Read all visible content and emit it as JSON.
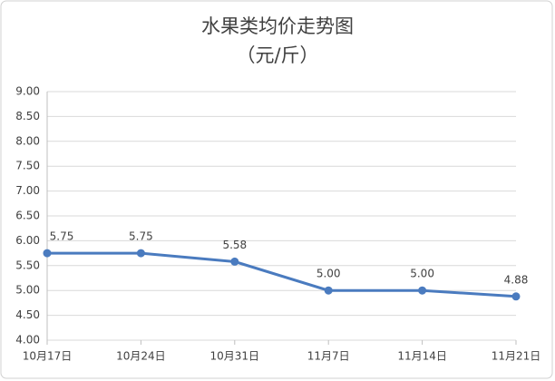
{
  "chart_data": {
    "type": "line",
    "title": "水果类均价走势图",
    "subtitle": "（元/斤）",
    "categories": [
      "10月17日",
      "10月24日",
      "10月31日",
      "11月7日",
      "11月14日",
      "11月21日"
    ],
    "series": [
      {
        "color": "#4a7bbf",
        "values": [
          5.75,
          5.75,
          5.58,
          5.0,
          5.0,
          4.88
        ],
        "value_labels": [
          "5.75",
          "5.75",
          "5.58",
          "5.00",
          "5.00",
          "4.88"
        ]
      }
    ],
    "ylim": [
      4,
      9
    ],
    "yticks": [
      {
        "value": 4,
        "label": "4.00"
      },
      {
        "value": 4.5,
        "label": "4.50"
      },
      {
        "value": 5,
        "label": "5.00"
      },
      {
        "value": 5.5,
        "label": "5.50"
      },
      {
        "value": 6,
        "label": "6.00"
      },
      {
        "value": 6.5,
        "label": "6.50"
      },
      {
        "value": 7,
        "label": "7.00"
      },
      {
        "value": 7.5,
        "label": "7.50"
      },
      {
        "value": 8,
        "label": "8.00"
      },
      {
        "value": 8.5,
        "label": "8.50"
      },
      {
        "value": 9,
        "label": "9.00"
      }
    ],
    "grid": true
  }
}
